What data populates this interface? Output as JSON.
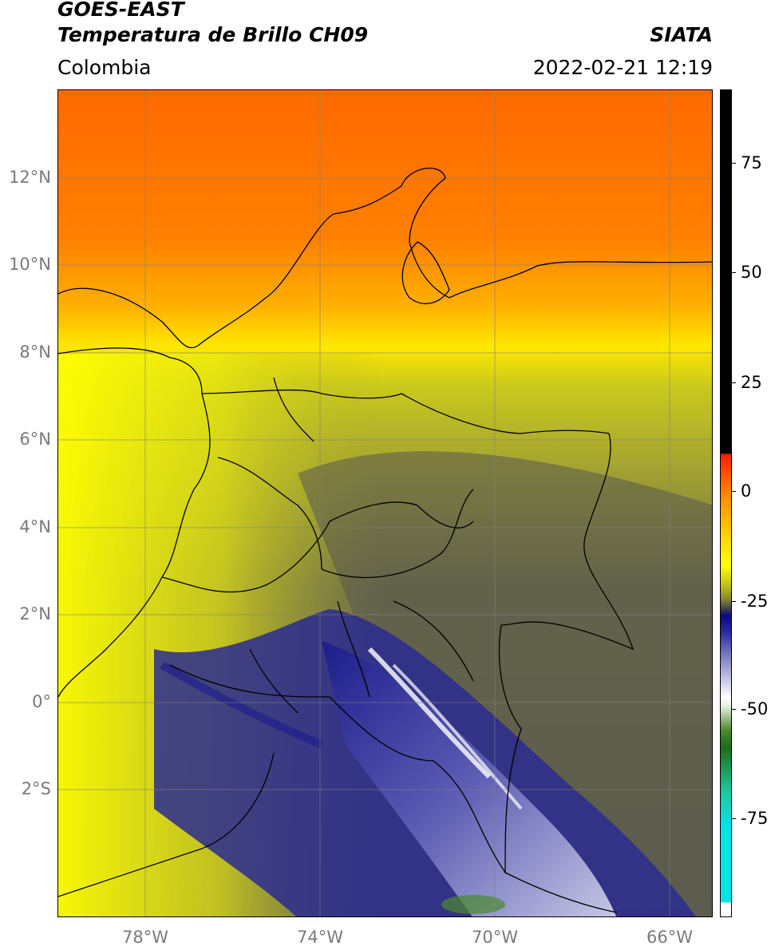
{
  "header": {
    "line1": "GOES-EAST",
    "line2": "Temperatura de Brillo CH09",
    "region": "Colombia",
    "organization": "SIATA",
    "datetime": "2022-02-21 12:19"
  },
  "map": {
    "lat_labels": [
      "12°N",
      "10°N",
      "8°N",
      "6°N",
      "4°N",
      "2°N",
      "0°",
      "2°S"
    ],
    "lon_labels": [
      "78°W",
      "74°W",
      "70°W",
      "66°W"
    ],
    "lon_range": [
      -80,
      -65
    ],
    "lat_range": [
      -4.8,
      14.1
    ]
  },
  "colorbar": {
    "ticks": [
      "75",
      "50",
      "25",
      "0",
      "-25",
      "-50",
      "-75"
    ]
  },
  "colors": {
    "warm": "#ff6a00",
    "mid": "#ffff00",
    "olive": "#7d7d3c",
    "cold_blue": "#1a1a8c",
    "coldest": "#ffffff"
  }
}
